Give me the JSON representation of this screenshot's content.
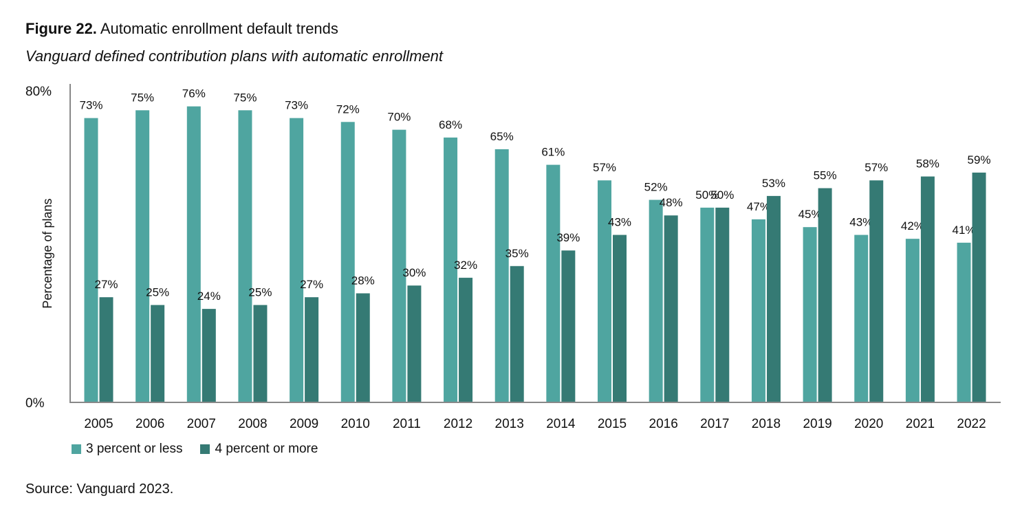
{
  "figure": {
    "label": "Figure 22.",
    "title": "Automatic enrollment default trends",
    "subtitle": "Vanguard defined contribution plans with automatic enrollment",
    "source": "Source: Vanguard 2023."
  },
  "chart_data": {
    "type": "bar",
    "ylabel": "Percentage of plans",
    "xlabel": "",
    "ylim": [
      0,
      80
    ],
    "yticks": [
      "0%",
      "80%"
    ],
    "grid": false,
    "legend_position": "bottom-left",
    "categories": [
      "2005",
      "2006",
      "2007",
      "2008",
      "2009",
      "2010",
      "2011",
      "2012",
      "2013",
      "2014",
      "2015",
      "2016",
      "2017",
      "2018",
      "2019",
      "2020",
      "2021",
      "2022"
    ],
    "series": [
      {
        "name": "3 percent or less",
        "color": "#4fa5a0",
        "values": [
          73,
          75,
          76,
          75,
          73,
          72,
          70,
          68,
          65,
          61,
          57,
          52,
          50,
          47,
          45,
          43,
          42,
          41
        ]
      },
      {
        "name": "4 percent or more",
        "color": "#357a74",
        "values": [
          27,
          25,
          24,
          25,
          27,
          28,
          30,
          32,
          35,
          39,
          43,
          48,
          50,
          53,
          55,
          57,
          58,
          59
        ]
      }
    ]
  }
}
